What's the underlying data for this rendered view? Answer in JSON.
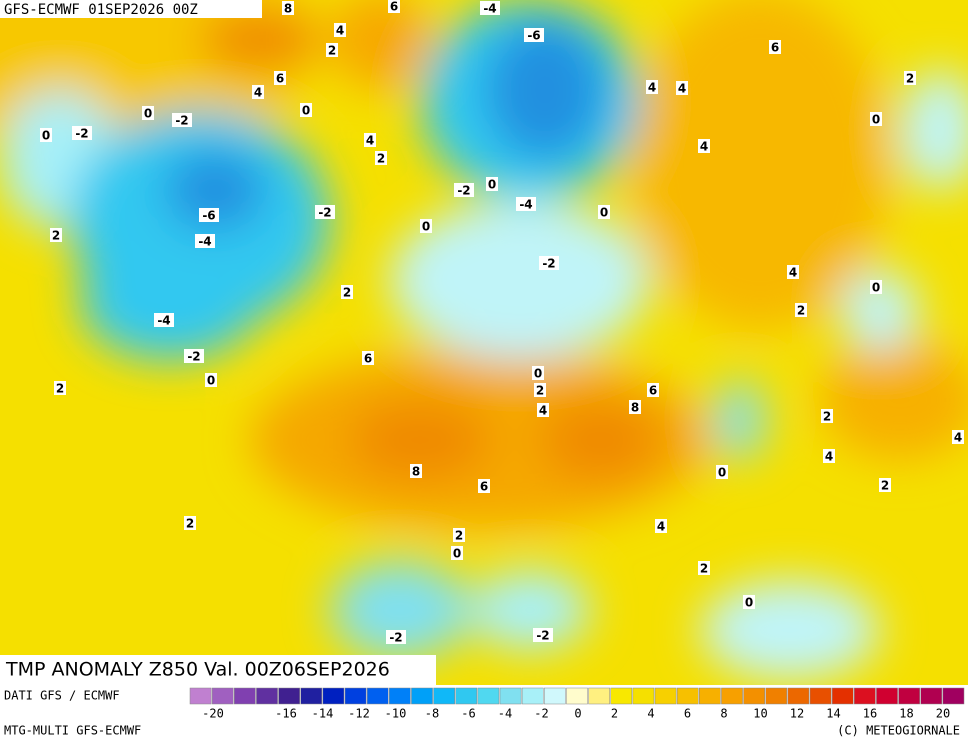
{
  "header": {
    "title": "GFS-ECMWF 01SEP2026 00Z"
  },
  "map": {
    "caption": "TMP ANOMALY Z850 Val. 00Z06SEP2026",
    "contour_labels": [
      8,
      6,
      -4,
      4,
      -6,
      2,
      4,
      6,
      0,
      0,
      -2,
      0,
      -2,
      6,
      2,
      4,
      4,
      0,
      4,
      2,
      4,
      -2,
      0,
      -6,
      -2,
      -4,
      0,
      0,
      -4,
      2,
      -2,
      4,
      0,
      2,
      2,
      -4,
      6,
      -2,
      0,
      2,
      0,
      2,
      6,
      4,
      8,
      2,
      4,
      4,
      8,
      0,
      6,
      2,
      2,
      4,
      2,
      0,
      2,
      0,
      -2,
      -2
    ]
  },
  "footer": {
    "source": "DATI GFS / ECMWF",
    "model": "MTG-MULTI GFS-ECMWF",
    "credit": "(C) METEOGIORNALE",
    "colorbar_ticks": [
      -20,
      -16,
      -14,
      -12,
      -10,
      -8,
      -6,
      -4,
      -2,
      0,
      2,
      4,
      6,
      8,
      10,
      12,
      14,
      16,
      18,
      20
    ]
  }
}
